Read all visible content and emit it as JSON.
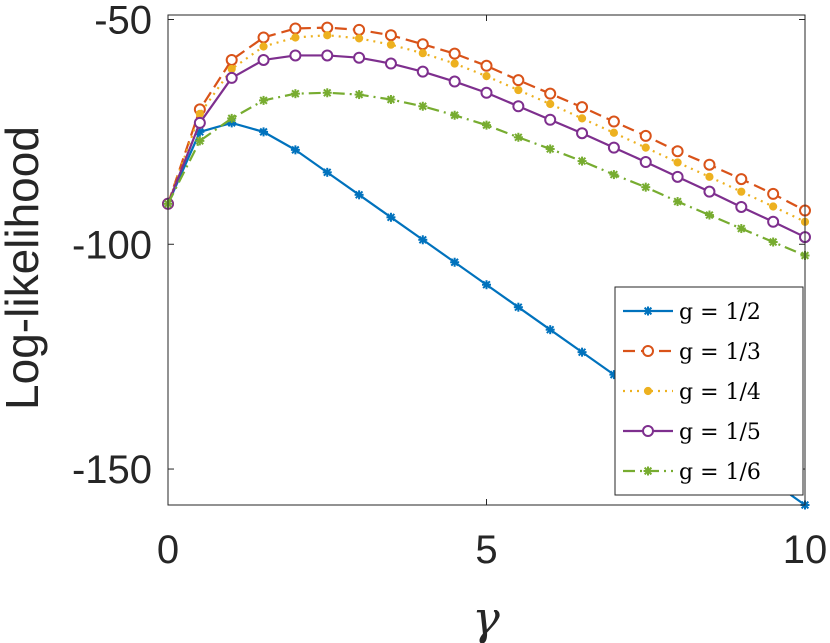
{
  "chart_data": {
    "type": "line",
    "title": "",
    "xlabel": "γ",
    "ylabel": "Log-likelihood",
    "xlim": [
      0,
      10
    ],
    "ylim": [
      -158,
      -49
    ],
    "xticks": [
      "0",
      "5",
      "10"
    ],
    "yticks": [
      "-50",
      "-100",
      "-150"
    ],
    "grid": false,
    "legend_position": "bottom-right",
    "x": [
      0,
      0.5,
      1,
      1.5,
      2,
      2.5,
      3,
      3.5,
      4,
      4.5,
      5,
      5.5,
      6,
      6.5,
      7,
      7.5,
      8,
      8.5,
      9,
      9.5,
      10
    ],
    "series": [
      {
        "name": "g = 1/2",
        "color": "#0072BD",
        "marker": "asterisk",
        "dash": "solid",
        "values": [
          -91,
          -75,
          -73,
          -75,
          -79,
          -84,
          -89,
          -94,
          -99,
          -104,
          -109,
          -114,
          -119,
          -124,
          -129,
          -134,
          -139,
          -144,
          -148,
          -153,
          -158
        ]
      },
      {
        "name": "g = 1/3",
        "color": "#D95319",
        "marker": "circle",
        "dash": "dashed",
        "values": [
          -91,
          -70,
          -59,
          -54,
          -52,
          -51.8,
          -52.3,
          -53.5,
          -55.5,
          -57.6,
          -60.3,
          -63.5,
          -66.5,
          -69.5,
          -72.7,
          -75.9,
          -79.3,
          -82.3,
          -85.5,
          -88.8,
          -92.5
        ]
      },
      {
        "name": "g = 1/4",
        "color": "#EDB120",
        "marker": "dot",
        "dash": "dotted",
        "values": [
          -91,
          -71,
          -61,
          -56,
          -54,
          -53.5,
          -54.2,
          -55.6,
          -57.5,
          -59.8,
          -62.6,
          -65.7,
          -68.8,
          -72,
          -75.2,
          -78.5,
          -81.8,
          -85,
          -88.3,
          -91.6,
          -95
        ]
      },
      {
        "name": "g = 1/5",
        "color": "#7E2F8E",
        "marker": "circle",
        "dash": "solid",
        "values": [
          -91,
          -73,
          -63,
          -59,
          -58,
          -58,
          -58.5,
          -59.8,
          -61.6,
          -63.8,
          -66.3,
          -69.3,
          -72.3,
          -75.3,
          -78.5,
          -81.7,
          -85,
          -88.3,
          -91.7,
          -95,
          -98.4
        ]
      },
      {
        "name": "g = 1/6",
        "color": "#77AC30",
        "marker": "asterisk",
        "dash": "dashdot",
        "values": [
          -91,
          -77,
          -72,
          -68,
          -66.5,
          -66.3,
          -66.7,
          -67.8,
          -69.3,
          -71.3,
          -73.5,
          -76.2,
          -78.8,
          -81.5,
          -84.5,
          -87.3,
          -90.5,
          -93.5,
          -96.5,
          -99.5,
          -102.5
        ]
      }
    ]
  }
}
